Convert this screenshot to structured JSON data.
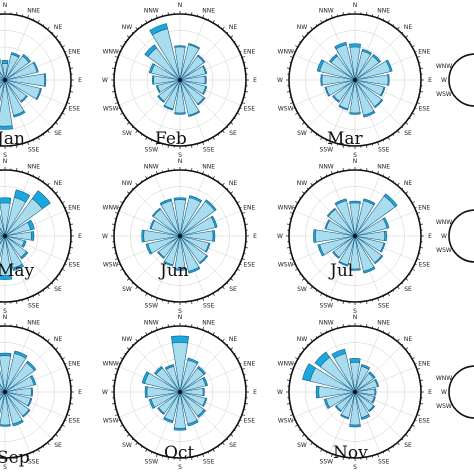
{
  "directions": [
    "N",
    "NNE",
    "NE",
    "ENE",
    "E",
    "ESE",
    "SE",
    "SSE",
    "S",
    "SSW",
    "SW",
    "WSW",
    "W",
    "WNW",
    "NW",
    "NNW"
  ],
  "colors": {
    "low_speed": "#a8ddf0",
    "high_speed": "#1aa7dd",
    "outline": "#1d5f86",
    "frame": "#111111"
  },
  "chart_data": [
    {
      "type": "windrose",
      "month": "Jan",
      "series": [
        {
          "values": [
            0.25,
            0.4,
            0.45,
            0.5,
            0.6,
            0.55,
            0.4,
            0.55,
            0.7,
            0.45,
            0.4,
            0.45,
            0.6,
            0.55,
            0.4,
            0.78
          ]
        },
        {
          "values": [
            0.05,
            0.03,
            0.03,
            0.02,
            0.02,
            0.02,
            0.02,
            0.03,
            0.05,
            0.03,
            0.03,
            0.03,
            0.03,
            0.05,
            0.08,
            0.16
          ]
        }
      ]
    },
    {
      "type": "windrose",
      "month": "Feb",
      "series": [
        {
          "values": [
            0.5,
            0.55,
            0.45,
            0.4,
            0.38,
            0.4,
            0.45,
            0.55,
            0.5,
            0.45,
            0.4,
            0.35,
            0.4,
            0.45,
            0.6,
            0.8
          ]
        },
        {
          "values": [
            0.02,
            0.02,
            0.02,
            0.02,
            0.02,
            0.02,
            0.02,
            0.02,
            0.02,
            0.02,
            0.02,
            0.02,
            0.02,
            0.03,
            0.06,
            0.08
          ]
        }
      ]
    },
    {
      "type": "windrose",
      "month": "Mar",
      "series": [
        {
          "values": [
            0.5,
            0.45,
            0.45,
            0.55,
            0.5,
            0.45,
            0.5,
            0.55,
            0.5,
            0.45,
            0.4,
            0.45,
            0.5,
            0.55,
            0.45,
            0.55
          ]
        },
        {
          "values": [
            0.05,
            0.03,
            0.03,
            0.03,
            0.02,
            0.02,
            0.02,
            0.03,
            0.02,
            0.02,
            0.02,
            0.02,
            0.02,
            0.04,
            0.03,
            0.04
          ]
        }
      ]
    },
    {
      "type": "windrose",
      "month": "May",
      "series": [
        {
          "values": [
            0.5,
            0.6,
            0.7,
            0.4,
            0.4,
            0.3,
            0.4,
            0.5,
            0.6,
            0.4,
            0.45,
            0.4,
            0.55,
            0.6,
            0.45,
            0.6
          ]
        },
        {
          "values": [
            0.08,
            0.12,
            0.15,
            0.06,
            0.04,
            0.03,
            0.03,
            0.04,
            0.06,
            0.04,
            0.03,
            0.03,
            0.05,
            0.06,
            0.05,
            0.08
          ]
        }
      ]
    },
    {
      "type": "windrose",
      "month": "Jun",
      "series": [
        {
          "values": [
            0.55,
            0.6,
            0.65,
            0.55,
            0.5,
            0.45,
            0.5,
            0.55,
            0.5,
            0.45,
            0.4,
            0.5,
            0.55,
            0.45,
            0.5,
            0.55
          ]
        },
        {
          "values": [
            0.03,
            0.03,
            0.03,
            0.03,
            0.03,
            0.02,
            0.02,
            0.03,
            0.02,
            0.02,
            0.02,
            0.03,
            0.03,
            0.02,
            0.02,
            0.03
          ]
        }
      ]
    },
    {
      "type": "windrose",
      "month": "Jul",
      "series": [
        {
          "values": [
            0.5,
            0.55,
            0.75,
            0.5,
            0.45,
            0.45,
            0.5,
            0.55,
            0.5,
            0.45,
            0.4,
            0.55,
            0.6,
            0.45,
            0.5,
            0.55
          ]
        },
        {
          "values": [
            0.03,
            0.03,
            0.04,
            0.03,
            0.03,
            0.02,
            0.02,
            0.03,
            0.02,
            0.02,
            0.02,
            0.03,
            0.03,
            0.02,
            0.02,
            0.03
          ]
        }
      ]
    },
    {
      "type": "windrose",
      "month": "Sep",
      "series": [
        {
          "values": [
            0.55,
            0.6,
            0.55,
            0.45,
            0.4,
            0.4,
            0.45,
            0.5,
            0.5,
            0.4,
            0.4,
            0.45,
            0.6,
            0.55,
            0.6,
            0.55
          ]
        },
        {
          "values": [
            0.04,
            0.04,
            0.03,
            0.03,
            0.02,
            0.02,
            0.02,
            0.03,
            0.02,
            0.02,
            0.02,
            0.03,
            0.04,
            0.03,
            0.05,
            0.04
          ]
        }
      ]
    },
    {
      "type": "windrose",
      "month": "Oct",
      "series": [
        {
          "values": [
            0.75,
            0.5,
            0.45,
            0.4,
            0.35,
            0.4,
            0.45,
            0.5,
            0.55,
            0.45,
            0.4,
            0.45,
            0.5,
            0.55,
            0.45,
            0.4
          ]
        },
        {
          "values": [
            0.1,
            0.03,
            0.03,
            0.03,
            0.02,
            0.02,
            0.03,
            0.03,
            0.03,
            0.03,
            0.02,
            0.03,
            0.03,
            0.04,
            0.03,
            0.03
          ]
        }
      ]
    },
    {
      "type": "windrose",
      "month": "Nov",
      "series": [
        {
          "values": [
            0.45,
            0.4,
            0.35,
            0.35,
            0.3,
            0.3,
            0.35,
            0.4,
            0.5,
            0.4,
            0.35,
            0.45,
            0.55,
            0.7,
            0.65,
            0.6
          ]
        },
        {
          "values": [
            0.06,
            0.03,
            0.03,
            0.02,
            0.02,
            0.02,
            0.02,
            0.03,
            0.03,
            0.02,
            0.02,
            0.03,
            0.04,
            0.12,
            0.1,
            0.07
          ]
        }
      ]
    }
  ]
}
